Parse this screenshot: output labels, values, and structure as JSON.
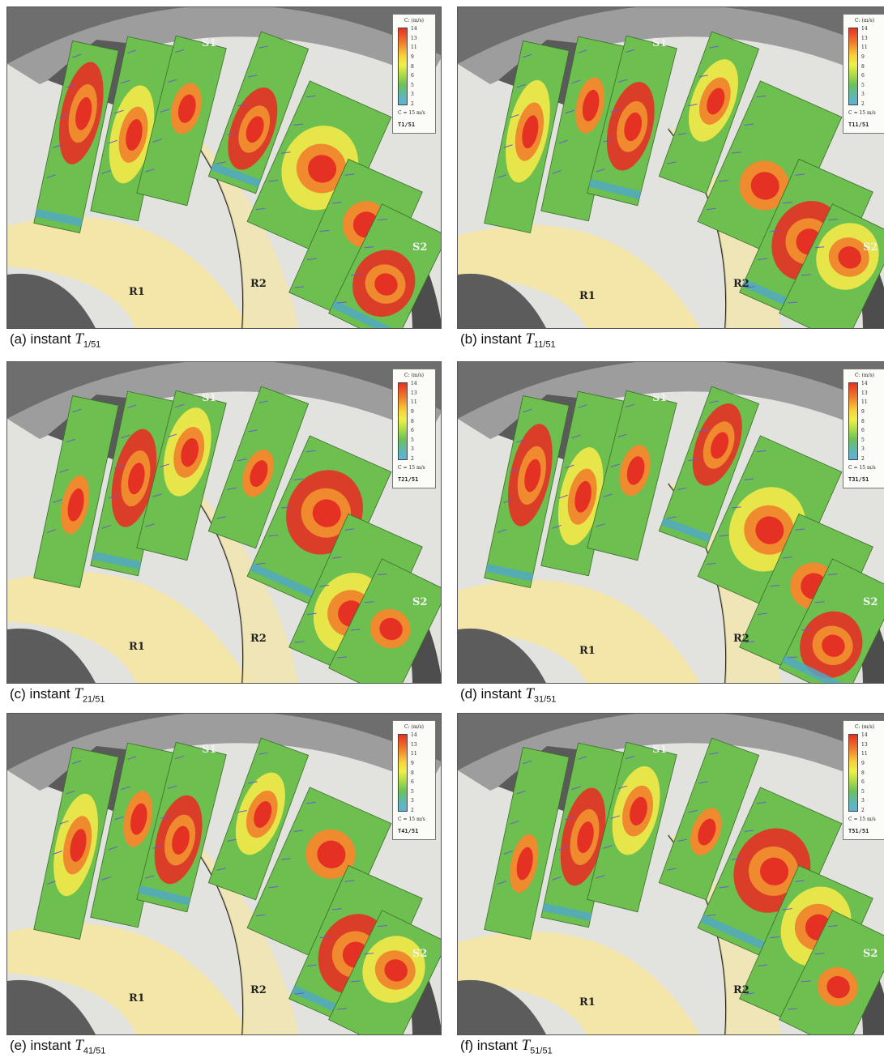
{
  "legend": {
    "title": "C: (m/s)",
    "ticks": [
      "14",
      "13",
      "11",
      "9",
      "8",
      "6",
      "5",
      "3",
      "2"
    ],
    "reference": "C = 15 m/s"
  },
  "labels": {
    "s1": "S1",
    "s2": "S2",
    "r1": "R1",
    "r2": "R2"
  },
  "panels": [
    {
      "caption_prefix": "(a) instant",
      "T": "T",
      "sub": "1/51",
      "instant_label": "T1/51"
    },
    {
      "caption_prefix": "(b) instant",
      "T": "T",
      "sub": "11/51",
      "instant_label": "T11/51"
    },
    {
      "caption_prefix": "(c) instant",
      "T": "T",
      "sub": "21/51",
      "instant_label": "T21/51"
    },
    {
      "caption_prefix": "(d) instant",
      "T": "T",
      "sub": "31/51",
      "instant_label": "T31/51"
    },
    {
      "caption_prefix": "(e) instant",
      "T": "T",
      "sub": "41/51",
      "instant_label": "T41/51"
    },
    {
      "caption_prefix": "(f) instant",
      "T": "T",
      "sub": "51/51",
      "instant_label": "T51/51"
    }
  ],
  "colors": {
    "red": "#e53024",
    "orange": "#f08a2e",
    "yellow": "#f3ea4a",
    "green": "#6dbf4f",
    "cyan": "#4fa9c9",
    "rotor": "#f4e6a8",
    "stator": "#8c8c8c"
  }
}
